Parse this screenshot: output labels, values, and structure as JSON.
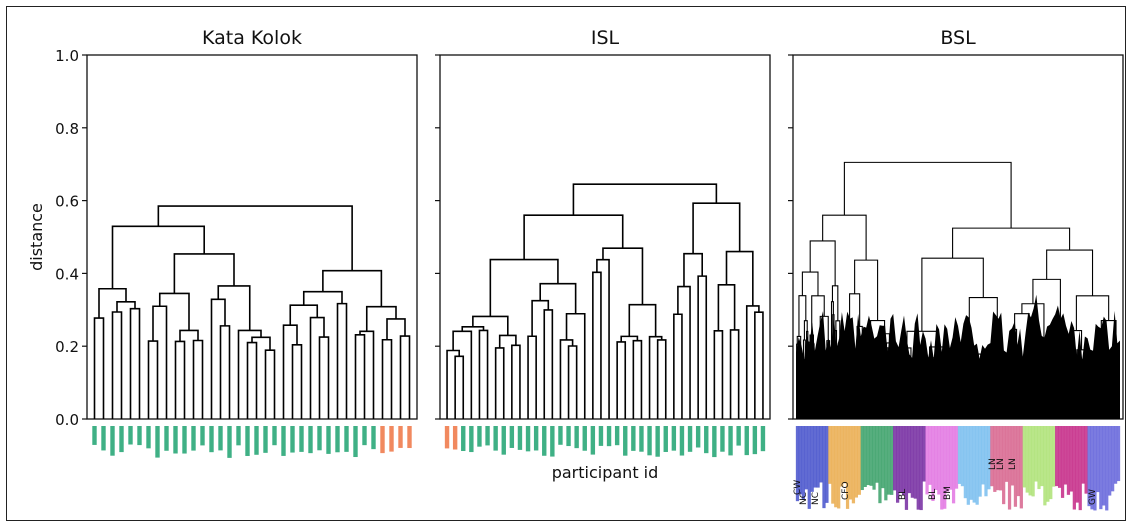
{
  "chart_data": {
    "type": "dendrogram",
    "ylabel": "distance",
    "xlabel": "participant id",
    "ylim": [
      0.0,
      1.0
    ],
    "yticks": [
      "0.0",
      "0.2",
      "0.4",
      "0.6",
      "0.8",
      "1.0"
    ],
    "panels": [
      {
        "title": "Kata Kolok",
        "leaf_colors": [
          "#2aa778",
          "#f07c4e"
        ],
        "leaf_color_split": 0.88,
        "leaf_count": 36,
        "root_height": 0.585,
        "merge_heights": [
          0.585,
          0.54,
          0.52,
          0.5,
          0.49,
          0.47,
          0.46,
          0.45,
          0.43,
          0.42,
          0.4,
          0.38,
          0.36,
          0.34,
          0.32,
          0.3,
          0.28,
          0.27,
          0.25,
          0.24,
          0.21
        ]
      },
      {
        "title": "ISL",
        "leaf_colors": [
          "#f07c4e",
          "#2aa778"
        ],
        "leaf_color_split": 0.04,
        "leaf_count": 40,
        "root_height": 0.645,
        "merge_heights": [
          0.645,
          0.63,
          0.61,
          0.58,
          0.55,
          0.53,
          0.5,
          0.48,
          0.47,
          0.46,
          0.45,
          0.43,
          0.42,
          0.4,
          0.38,
          0.36,
          0.34,
          0.32,
          0.3,
          0.27,
          0.24
        ]
      },
      {
        "title": "BSL",
        "leaf_colors": [
          "#3a46c8",
          "#e8a642",
          "#2c9a5e",
          "#6a1c9a",
          "#e06ce0",
          "#6fb9ee",
          "#d45a86",
          "#a8e06c",
          "#c01a7e",
          "#5a5ad8"
        ],
        "leaf_count": 260,
        "root_height": 0.705,
        "merge_heights": [
          0.705,
          0.63,
          0.61,
          0.59,
          0.55,
          0.52,
          0.48,
          0.44,
          0.41,
          0.38,
          0.34,
          0.3
        ]
      }
    ],
    "bsl_visible_labels": [
      "CW",
      "NC",
      "NC",
      "CFO",
      "BL",
      "BL",
      "BM",
      "LN",
      "LN",
      "LN",
      "GW"
    ],
    "notes_ticklabels": "leaf labels are participant ids printed vertically, mostly illegible"
  }
}
